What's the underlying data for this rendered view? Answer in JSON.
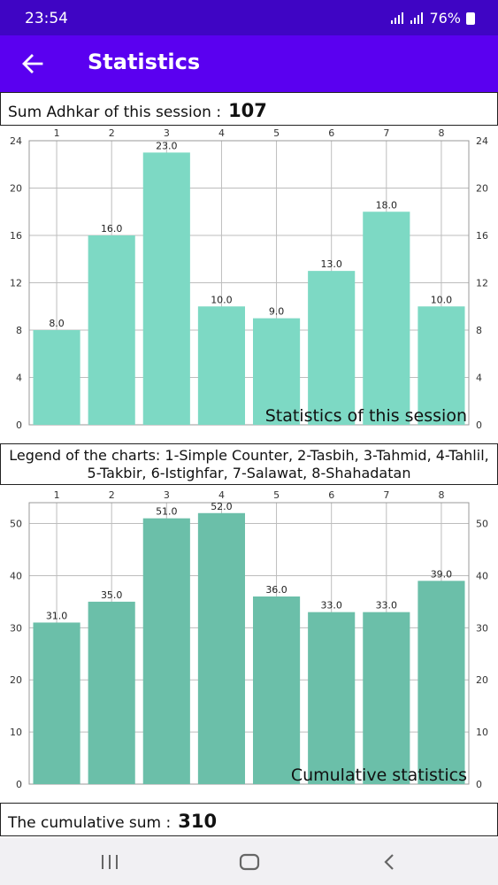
{
  "status_bar": {
    "time": "23:54",
    "battery": "76%"
  },
  "app_bar": {
    "title": "Statistics",
    "back_icon": "arrow-left-icon"
  },
  "session_sum": {
    "label": "Sum Adhkar of this session :",
    "value": "107"
  },
  "legend": {
    "text": "Legend of the charts: 1-Simple Counter, 2-Tasbih, 3-Tahmid, 4-Tahlil, 5-Takbir, 6-Istighfar, 7-Salawat, 8-Shahadatan"
  },
  "cumulative_sum": {
    "label": "The cumulative sum  :",
    "value": "310"
  },
  "nav_bar": {
    "recents_icon": "recents-icon",
    "home_icon": "home-icon",
    "back_icon": "back-chevron-icon"
  },
  "chart_data": [
    {
      "type": "bar",
      "categories": [
        "1",
        "2",
        "3",
        "4",
        "5",
        "6",
        "7",
        "8"
      ],
      "values": [
        8,
        16,
        23,
        10,
        9,
        13,
        18,
        10
      ],
      "value_labels": [
        "8.0",
        "16.0",
        "23.0",
        "10.0",
        "9.0",
        "13.0",
        "18.0",
        "10.0"
      ],
      "description": "Statistics of this session",
      "yticks": [
        "0",
        "4",
        "8",
        "12",
        "16",
        "20",
        "24"
      ],
      "ylim": [
        0,
        24
      ],
      "bar_color": "#7dd9c4",
      "grid": true
    },
    {
      "type": "bar",
      "categories": [
        "1",
        "2",
        "3",
        "4",
        "5",
        "6",
        "7",
        "8"
      ],
      "values": [
        31,
        35,
        51,
        52,
        36,
        33,
        33,
        39
      ],
      "value_labels": [
        "31.0",
        "35.0",
        "51.0",
        "52.0",
        "36.0",
        "33.0",
        "33.0",
        "39.0"
      ],
      "description": "Cumulative statistics",
      "yticks": [
        "0",
        "10",
        "20",
        "30",
        "40",
        "50"
      ],
      "ylim": [
        0,
        54
      ],
      "bar_color": "#6bbfa9",
      "grid": true
    }
  ]
}
